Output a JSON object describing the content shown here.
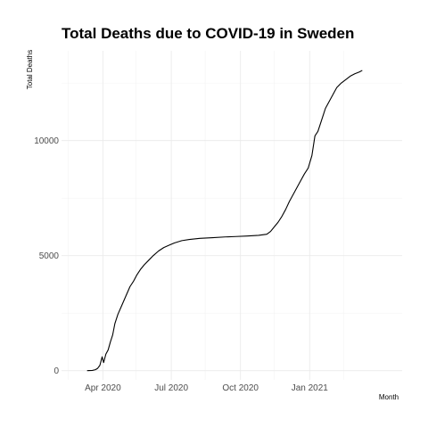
{
  "chart_data": {
    "type": "line",
    "title": "Total Deaths due to COVID-19 in Sweden",
    "xlabel": "Month",
    "ylabel": "Total Deaths",
    "x_axis_type": "date",
    "xlim": [
      "2020-02-06",
      "2021-05-04"
    ],
    "ylim": [
      -400,
      13900
    ],
    "x_ticks": [
      {
        "date": "2020-04-01",
        "label": "Apr 2020"
      },
      {
        "date": "2020-07-01",
        "label": "Jul 2020"
      },
      {
        "date": "2020-10-01",
        "label": "Oct 2020"
      },
      {
        "date": "2021-01-01",
        "label": "Jan 2021"
      }
    ],
    "x_minor_ticks": [
      "2020-02-15",
      "2020-05-15",
      "2020-08-15",
      "2020-11-15",
      "2021-02-15"
    ],
    "y_ticks": [
      0,
      5000,
      10000
    ],
    "y_minor_ticks": [
      2500,
      7500,
      12500
    ],
    "grid": true,
    "legend": "none",
    "series": [
      {
        "color": "#000000",
        "points": [
          [
            "2020-03-11",
            0
          ],
          [
            "2020-03-18",
            10
          ],
          [
            "2020-03-22",
            40
          ],
          [
            "2020-03-25",
            100
          ],
          [
            "2020-03-28",
            230
          ],
          [
            "2020-03-31",
            600
          ],
          [
            "2020-04-02",
            350
          ],
          [
            "2020-04-05",
            720
          ],
          [
            "2020-04-08",
            900
          ],
          [
            "2020-04-11",
            1250
          ],
          [
            "2020-04-14",
            1550
          ],
          [
            "2020-04-17",
            2050
          ],
          [
            "2020-04-21",
            2450
          ],
          [
            "2020-04-25",
            2750
          ],
          [
            "2020-04-29",
            3050
          ],
          [
            "2020-05-03",
            3350
          ],
          [
            "2020-05-07",
            3650
          ],
          [
            "2020-05-12",
            3900
          ],
          [
            "2020-05-16",
            4150
          ],
          [
            "2020-05-21",
            4400
          ],
          [
            "2020-05-26",
            4600
          ],
          [
            "2020-06-01",
            4800
          ],
          [
            "2020-06-07",
            5000
          ],
          [
            "2020-06-14",
            5200
          ],
          [
            "2020-06-21",
            5350
          ],
          [
            "2020-06-28",
            5450
          ],
          [
            "2020-07-05",
            5550
          ],
          [
            "2020-07-15",
            5650
          ],
          [
            "2020-07-25",
            5700
          ],
          [
            "2020-08-08",
            5750
          ],
          [
            "2020-08-25",
            5780
          ],
          [
            "2020-09-10",
            5810
          ],
          [
            "2020-09-25",
            5830
          ],
          [
            "2020-10-10",
            5850
          ],
          [
            "2020-10-25",
            5880
          ],
          [
            "2020-11-05",
            5930
          ],
          [
            "2020-11-10",
            6050
          ],
          [
            "2020-11-15",
            6250
          ],
          [
            "2020-11-20",
            6450
          ],
          [
            "2020-11-25",
            6700
          ],
          [
            "2020-11-30",
            7000
          ],
          [
            "2020-12-05",
            7350
          ],
          [
            "2020-12-10",
            7650
          ],
          [
            "2020-12-15",
            7950
          ],
          [
            "2020-12-20",
            8250
          ],
          [
            "2020-12-25",
            8550
          ],
          [
            "2020-12-30",
            8800
          ],
          [
            "2021-01-04",
            9350
          ],
          [
            "2021-01-08",
            10200
          ],
          [
            "2021-01-12",
            10400
          ],
          [
            "2021-01-17",
            10900
          ],
          [
            "2021-01-22",
            11400
          ],
          [
            "2021-01-27",
            11700
          ],
          [
            "2021-02-01",
            12000
          ],
          [
            "2021-02-06",
            12300
          ],
          [
            "2021-02-12",
            12500
          ],
          [
            "2021-02-18",
            12650
          ],
          [
            "2021-02-24",
            12800
          ],
          [
            "2021-03-02",
            12900
          ],
          [
            "2021-03-08",
            12980
          ],
          [
            "2021-03-12",
            13050
          ]
        ]
      }
    ]
  }
}
